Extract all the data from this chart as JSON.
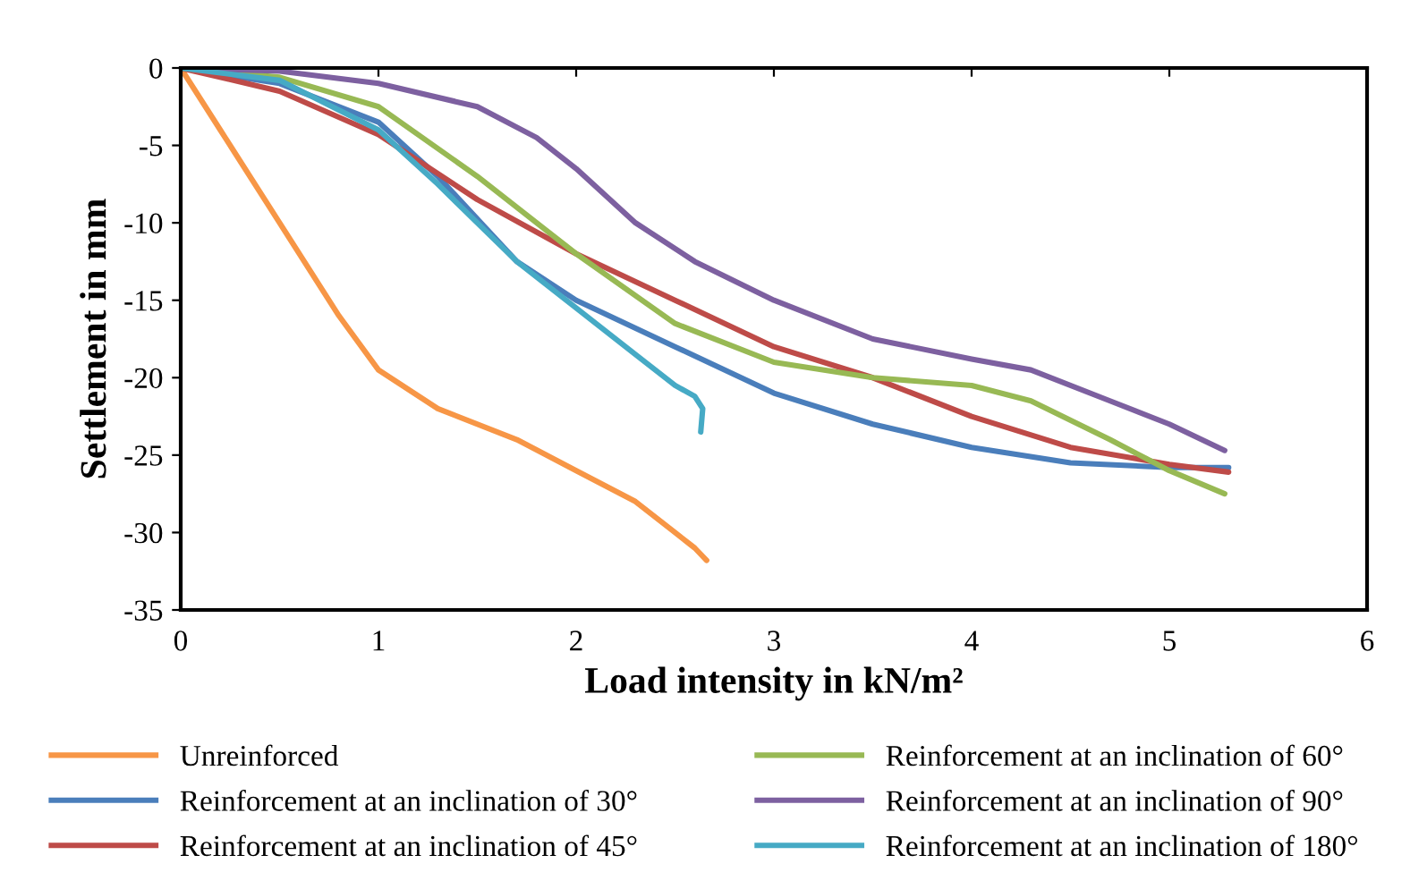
{
  "chart_data": {
    "type": "line",
    "xlabel": "Load intensity in kN/m²",
    "ylabel": "Settlement in mm",
    "xlim": [
      0,
      6
    ],
    "xticks": [
      0,
      1,
      2,
      3,
      4,
      5,
      6
    ],
    "ylim": [
      -35,
      0
    ],
    "yticks": [
      -35,
      -30,
      -25,
      -20,
      -15,
      -10,
      -5,
      0
    ],
    "grid": false,
    "legend": "bottom",
    "marker": "none",
    "line_style": "solid",
    "series": [
      {
        "name": "Unreinforced",
        "color": "#f79646",
        "x": [
          0,
          0.2,
          0.5,
          0.8,
          1,
          1.3,
          1.7,
          2,
          2.3,
          2.5,
          2.6,
          2.66
        ],
        "values": [
          0,
          -4,
          -10,
          -16,
          -19.5,
          -22,
          -24,
          -26,
          -28,
          -30,
          -31,
          -31.8
        ]
      },
      {
        "name": "Reinforcement at an inclination of 30°",
        "color": "#4a7ebb",
        "x": [
          0,
          0.5,
          1,
          1.3,
          1.7,
          2,
          2.5,
          3,
          3.5,
          4,
          4.5,
          5,
          5.3
        ],
        "values": [
          0,
          -1,
          -3.5,
          -7,
          -12.5,
          -15,
          -18,
          -21,
          -23,
          -24.5,
          -25.5,
          -25.8,
          -25.8
        ]
      },
      {
        "name": "Reinforcement at an inclination of 45°",
        "color": "#be4b48",
        "x": [
          0,
          0.5,
          1,
          1.5,
          2,
          2.5,
          3,
          3.5,
          4,
          4.5,
          5,
          5.3
        ],
        "values": [
          0,
          -1.5,
          -4.3,
          -8.5,
          -12,
          -15,
          -18,
          -20,
          -22.5,
          -24.5,
          -25.6,
          -26.1
        ]
      },
      {
        "name": "Reinforcement at an inclination of 60°",
        "color": "#98b954",
        "x": [
          0,
          0.5,
          1,
          1.5,
          2,
          2.5,
          3,
          3.5,
          4,
          4.3,
          4.7,
          5,
          5.28
        ],
        "values": [
          0,
          -0.6,
          -2.5,
          -7,
          -12,
          -16.5,
          -19,
          -20,
          -20.5,
          -21.5,
          -24,
          -26,
          -27.5
        ]
      },
      {
        "name": "Reinforcement at an inclination of 90°",
        "color": "#7d60a0",
        "x": [
          0,
          0.5,
          1,
          1.5,
          1.8,
          2,
          2.3,
          2.6,
          3,
          3.5,
          4,
          4.3,
          4.7,
          5,
          5.28
        ],
        "values": [
          0,
          -0.2,
          -1,
          -2.5,
          -4.5,
          -6.5,
          -10,
          -12.5,
          -15,
          -17.5,
          -18.8,
          -19.5,
          -21.5,
          -23,
          -24.7
        ]
      },
      {
        "name": "Reinforcement at an inclination of 180°",
        "color": "#46aac5",
        "x": [
          0,
          0.5,
          1,
          1.3,
          1.7,
          2,
          2.3,
          2.5,
          2.6,
          2.64,
          2.63
        ],
        "values": [
          0,
          -0.8,
          -4,
          -7.5,
          -12.5,
          -15.5,
          -18.5,
          -20.5,
          -21.2,
          -22,
          -23.5
        ]
      }
    ]
  }
}
